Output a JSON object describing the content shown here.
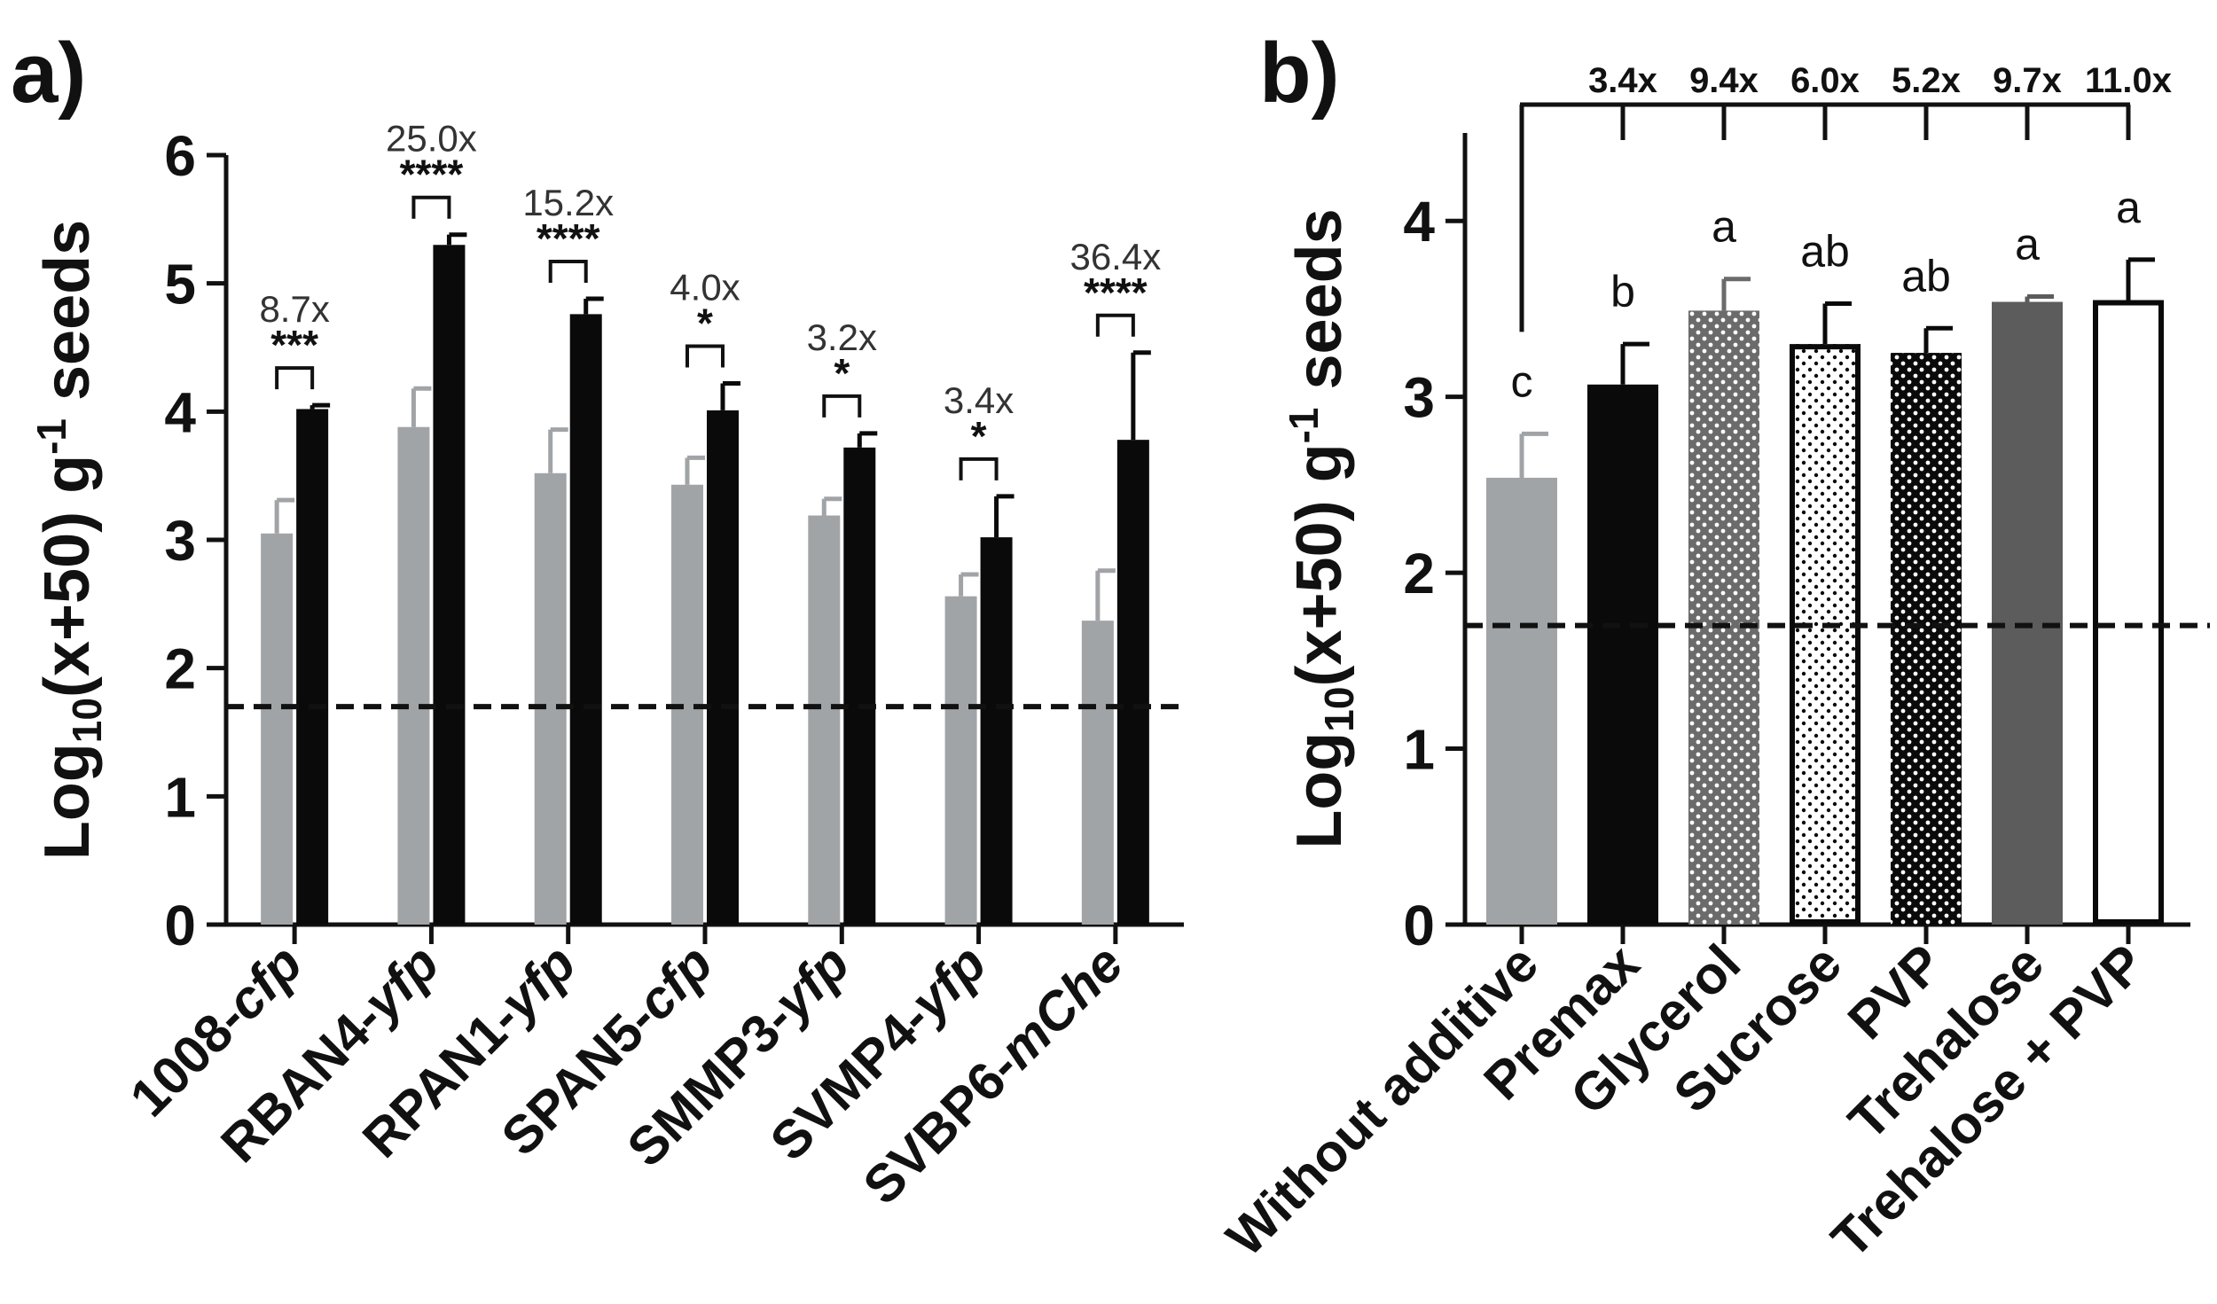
{
  "panel_a": {
    "label": "a)"
  },
  "panel_b": {
    "label": "b)"
  },
  "chart_data": [
    {
      "type": "bar",
      "panel": "a)",
      "ylabel": "Log10(x+50) g-1 seeds",
      "ylim": [
        0,
        6
      ],
      "yticks": [
        0,
        1,
        2,
        3,
        4,
        5,
        6
      ],
      "categories": [
        {
          "prefix": "1008-",
          "suffix": "cfp"
        },
        {
          "prefix": "RBAN4-",
          "suffix": "yfp"
        },
        {
          "prefix": "RPAN1-",
          "suffix": "yfp"
        },
        {
          "prefix": "SPAN5-",
          "suffix": "cfp"
        },
        {
          "prefix": "SMMP3-",
          "suffix": "yfp"
        },
        {
          "prefix": "SVMP4-",
          "suffix": "yfp"
        },
        {
          "prefix": "SVBP6-",
          "suffix": "mChe"
        }
      ],
      "series": [
        {
          "name": "grey",
          "color": "#a1a4a7",
          "values": [
            3.05,
            3.88,
            3.52,
            3.43,
            3.19,
            2.56,
            2.37
          ],
          "errors": [
            0.26,
            0.3,
            0.34,
            0.21,
            0.13,
            0.17,
            0.39
          ]
        },
        {
          "name": "black",
          "color": "#0a0a0a",
          "values": [
            4.02,
            5.3,
            4.76,
            4.01,
            3.72,
            3.02,
            3.78
          ],
          "errors": [
            0.03,
            0.08,
            0.12,
            0.21,
            0.11,
            0.32,
            0.68
          ]
        }
      ],
      "fold_changes": [
        "8.7x",
        "25.0x",
        "15.2x",
        "4.0x",
        "3.2x",
        "3.4x",
        "36.4x"
      ],
      "significance": [
        "***",
        "****",
        "****",
        "*",
        "*",
        "*",
        "****"
      ],
      "detection_limit": 1.7
    },
    {
      "type": "bar",
      "panel": "b)",
      "ylabel": "Log10(x+50) g-1 seeds",
      "ylim": [
        0,
        4.5
      ],
      "yticks": [
        0,
        1,
        2,
        3,
        4
      ],
      "categories": [
        "Without additive",
        "Premax",
        "Glycerol",
        "Sucrose",
        "PVP",
        "Trehalose",
        "Trehalose + PVP"
      ],
      "values": [
        2.54,
        3.07,
        3.49,
        3.3,
        3.25,
        3.54,
        3.55
      ],
      "errors": [
        0.25,
        0.23,
        0.18,
        0.23,
        0.14,
        0.03,
        0.23
      ],
      "letters": [
        "c",
        "b",
        "a",
        "ab",
        "ab",
        "a",
        "a"
      ],
      "fold_changes": [
        "3.4x",
        "9.4x",
        "6.0x",
        "5.2x",
        "9.7x",
        "11.0x"
      ],
      "fill_styles": [
        {
          "fill": "#a1a4a7",
          "pattern": "none",
          "outline": "#a1a4a7"
        },
        {
          "fill": "#0a0a0a",
          "pattern": "none",
          "outline": "#0a0a0a"
        },
        {
          "fill": "#6b6b6b",
          "pattern": "white-dots",
          "outline": "#6b6b6b"
        },
        {
          "fill": "#ffffff",
          "pattern": "black-dots",
          "outline": "#0a0a0a"
        },
        {
          "fill": "#0a0a0a",
          "pattern": "white-dots",
          "outline": "#0a0a0a"
        },
        {
          "fill": "#5c5c5c",
          "pattern": "none",
          "outline": "#5c5c5c"
        },
        {
          "fill": "#ffffff",
          "pattern": "none",
          "outline": "#0a0a0a"
        }
      ],
      "detection_limit": 1.7
    }
  ]
}
